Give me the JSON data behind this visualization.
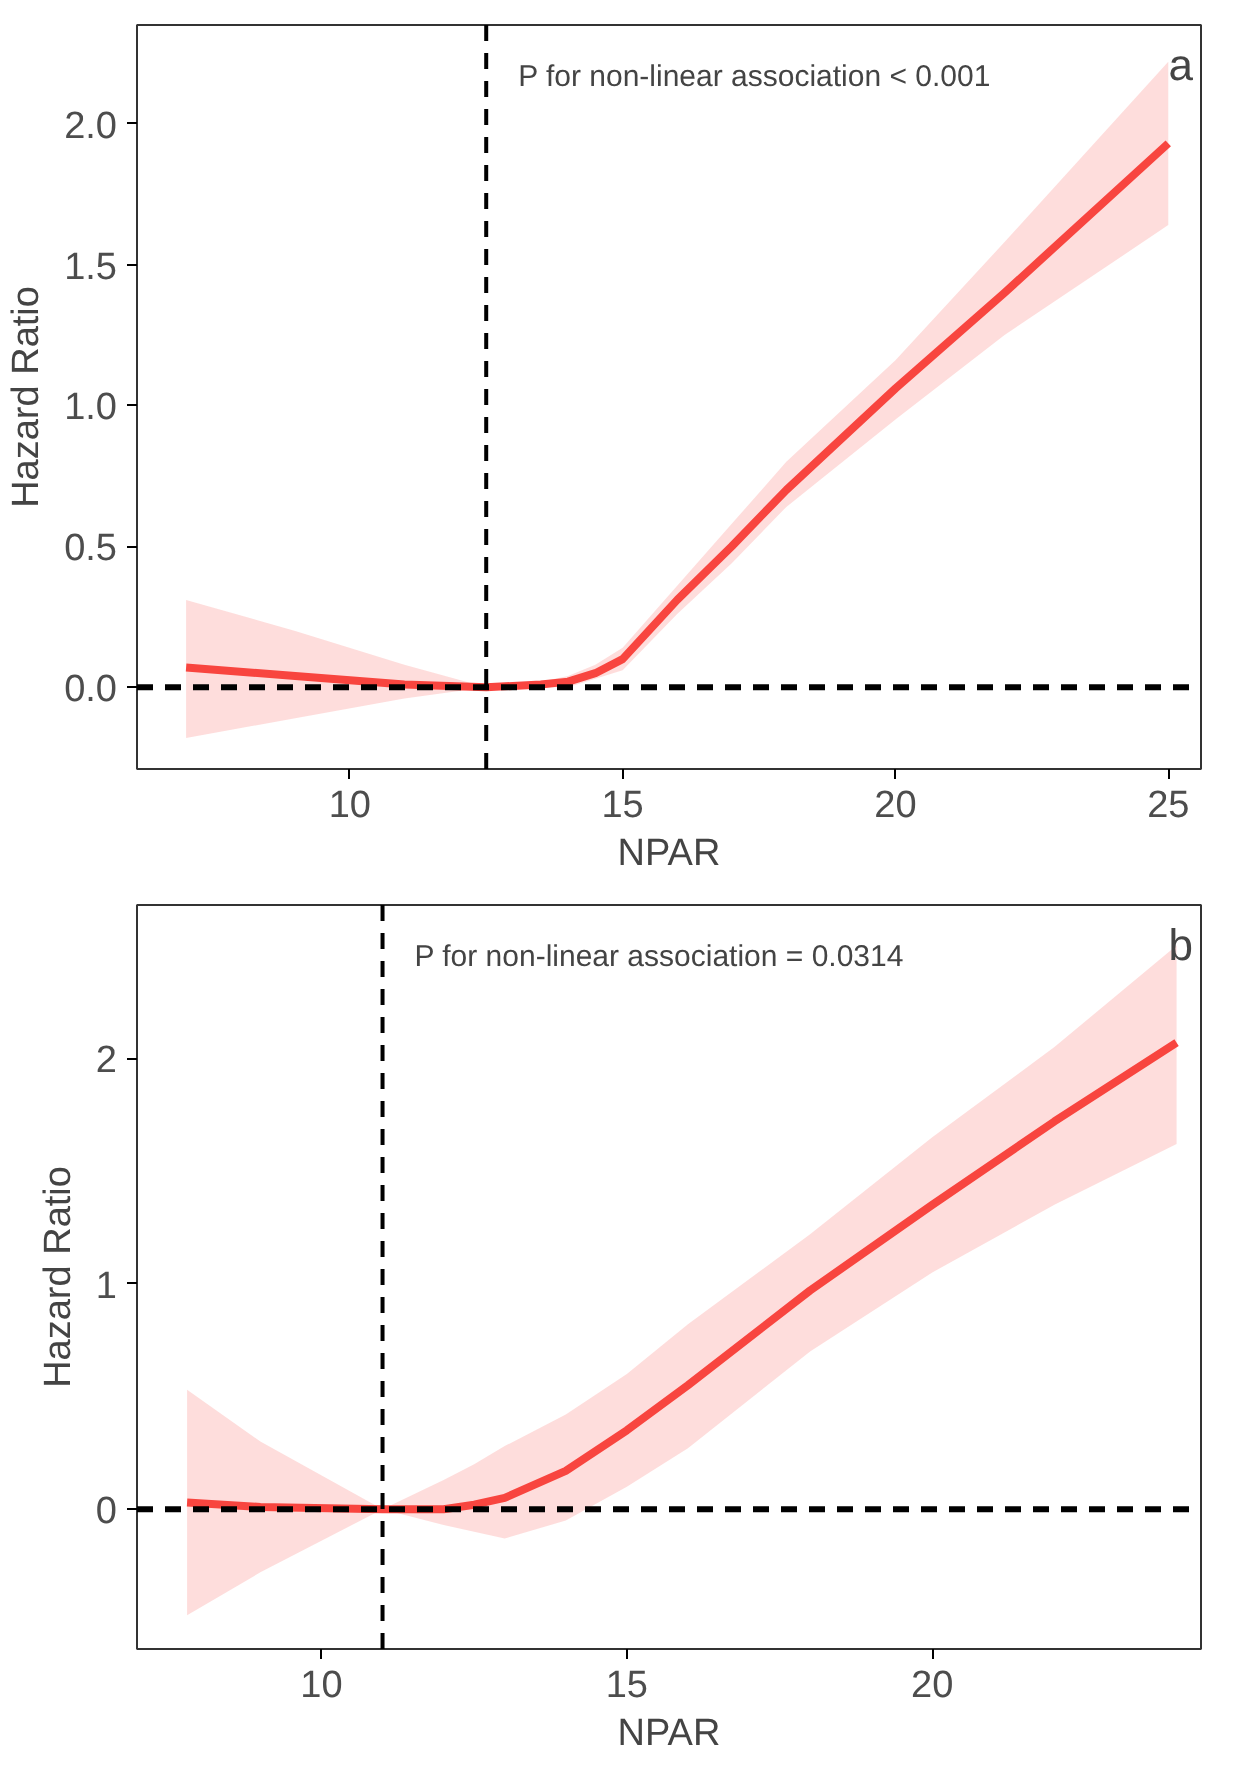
{
  "chart_data": [
    {
      "type": "line",
      "xlabel": "NPAR",
      "ylabel": "Hazard Ratio",
      "annotations": [
        "P for non-linear association < 0.001",
        "a"
      ],
      "xlim": [
        6.1,
        25.6
      ],
      "ylim": [
        -0.29,
        2.35
      ],
      "xticks": [
        10,
        15,
        20,
        25
      ],
      "yticks": [
        {
          "value": 0,
          "label": "0.0"
        },
        {
          "value": 0.5,
          "label": "0.5"
        },
        {
          "value": 1,
          "label": "1.0"
        },
        {
          "value": 1.5,
          "label": "1.5"
        },
        {
          "value": 2,
          "label": "2.0"
        }
      ],
      "grid": false,
      "ref_lines": [
        {
          "axis": "x",
          "value": 12.5,
          "color": "#000000",
          "line_style": "dashed"
        },
        {
          "axis": "y",
          "value": 0,
          "color": "#000000",
          "line_style": "dashed"
        }
      ],
      "series": [
        {
          "color": "#f8453f",
          "x": [
            7,
            9,
            11,
            12.5,
            13.5,
            14,
            14.5,
            15,
            16,
            17,
            18,
            20,
            22,
            25
          ],
          "values": [
            0.07,
            0.04,
            0.01,
            0,
            0.01,
            0.02,
            0.05,
            0.1,
            0.31,
            0.5,
            0.7,
            1.06,
            1.4,
            1.93
          ],
          "lower": [
            -0.18,
            -0.11,
            -0.04,
            0,
            0,
            0,
            0.03,
            0.06,
            0.26,
            0.44,
            0.64,
            0.95,
            1.25,
            1.64
          ],
          "upper": [
            0.31,
            0.2,
            0.08,
            0,
            0.02,
            0.04,
            0.08,
            0.14,
            0.36,
            0.58,
            0.8,
            1.16,
            1.58,
            2.22
          ]
        }
      ]
    },
    {
      "type": "line",
      "xlabel": "NPAR",
      "ylabel": "Hazard Ratio",
      "annotations": [
        "P for non-linear association =  0.0314",
        "b"
      ],
      "xlim": [
        6.98,
        24.4
      ],
      "ylim": [
        -0.62,
        2.68
      ],
      "xticks": [
        10,
        15,
        20
      ],
      "yticks": [
        0,
        1,
        2
      ],
      "grid": false,
      "ref_lines": [
        {
          "axis": "x",
          "value": 11,
          "color": "#000000",
          "line_style": "dashed"
        },
        {
          "axis": "y",
          "value": 0,
          "color": "#000000",
          "line_style": "dashed"
        }
      ],
      "series": [
        {
          "color": "#f8453f",
          "x": [
            7.8,
            9,
            11,
            12,
            12.5,
            13,
            14,
            15,
            16,
            18,
            20,
            22,
            24
          ],
          "values": [
            0.03,
            0.01,
            0,
            0,
            0.02,
            0.05,
            0.17,
            0.35,
            0.55,
            0.97,
            1.35,
            1.72,
            2.07
          ],
          "lower": [
            -0.47,
            -0.28,
            0,
            -0.07,
            -0.1,
            -0.13,
            -0.05,
            0.1,
            0.27,
            0.7,
            1.05,
            1.35,
            1.62
          ],
          "upper": [
            0.53,
            0.3,
            0,
            0.13,
            0.2,
            0.28,
            0.42,
            0.6,
            0.82,
            1.22,
            1.65,
            2.05,
            2.5
          ]
        }
      ]
    }
  ]
}
